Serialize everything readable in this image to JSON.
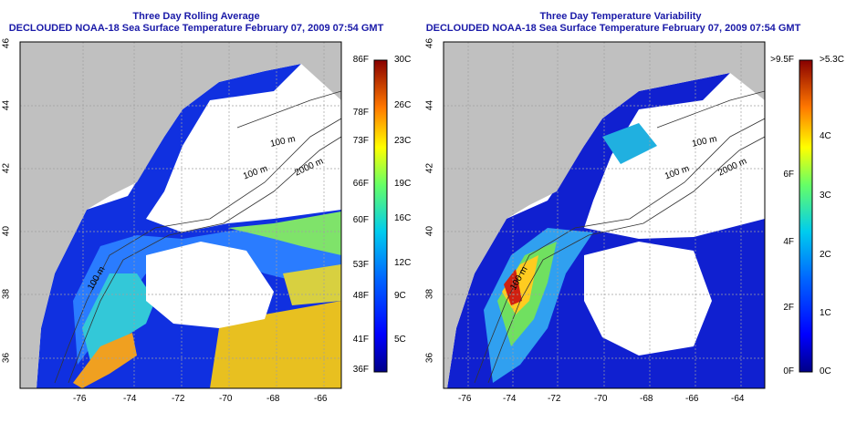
{
  "panels": [
    {
      "title": "Three Day Rolling Average",
      "subtitle": "DECLOUDED NOAA-18 Sea Surface Temperature February 07, 2009 07:54 GMT",
      "colorbar_left_ticks": [
        "86F",
        "78F",
        "73F",
        "66F",
        "60F",
        "53F",
        "48F",
        "41F",
        "36F"
      ],
      "colorbar_right_ticks": [
        "30C",
        "26C",
        "23C",
        "19C",
        "16C",
        "12C",
        "9C",
        "5C"
      ]
    },
    {
      "title": "Three Day Temperature Variability",
      "subtitle": "DECLOUDED NOAA-18 Sea Surface Temperature February 07, 2009 07:54 GMT",
      "colorbar_left_ticks": [
        ">9.5F",
        "6F",
        "4F",
        "2F",
        "0F"
      ],
      "colorbar_right_ticks": [
        ">5.3C",
        "4C",
        "3C",
        "2C",
        "1C",
        "0C"
      ]
    }
  ],
  "x_ticks": [
    "-76",
    "-74",
    "-72",
    "-70",
    "-68",
    "-66",
    "-64"
  ],
  "y_ticks": [
    "46",
    "44",
    "42",
    "40",
    "38",
    "36"
  ],
  "contour_labels": [
    "100 m",
    "2000 m",
    "100 m",
    "100 m",
    "100 m",
    "2000 m",
    "100 m",
    "100 m"
  ],
  "colors": {
    "title": "#1a1aa8",
    "land": "#c0c0c0",
    "ocean_clear": "#ffffff",
    "grid": "#a0a0a0"
  }
}
